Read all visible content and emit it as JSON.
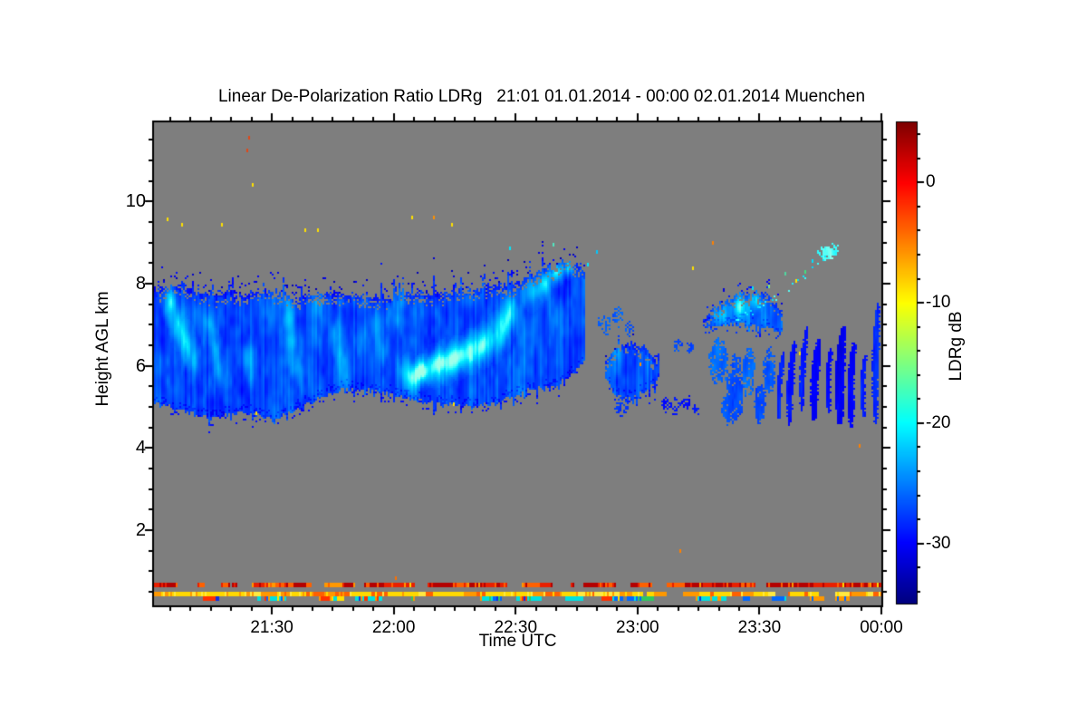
{
  "chart_data": {
    "type": "heatmap",
    "title": "Linear De-Polarization Ratio LDRg   21:01 01.01.2014 - 00:00 02.01.2014 Muenchen",
    "xlabel": "Time UTC",
    "ylabel": "Height AGL km",
    "no_signal_color": "#7e7e7e",
    "axis_color": "#000000",
    "grid": false,
    "x_axis": {
      "start": "21:01",
      "end": "00:00",
      "duration_min": 179,
      "major_ticks": [
        {
          "t": 29,
          "label": "21:30"
        },
        {
          "t": 59,
          "label": "22:00"
        },
        {
          "t": 89,
          "label": "22:30"
        },
        {
          "t": 119,
          "label": "23:00"
        },
        {
          "t": 149,
          "label": "23:30"
        },
        {
          "t": 179,
          "label": "00:00"
        }
      ],
      "minor_step_min": 5
    },
    "y_axis": {
      "range_km": [
        0.17,
        11.93
      ],
      "major_ticks": [
        {
          "km": 10,
          "label": "10"
        },
        {
          "km": 8,
          "label": "8"
        },
        {
          "km": 6,
          "label": "6"
        },
        {
          "km": 4,
          "label": "4"
        },
        {
          "km": 2,
          "label": "2"
        }
      ],
      "minor_step_km": 0.5
    },
    "colorbar": {
      "label": "LDRg dB",
      "colormap": "jet",
      "range_db": [
        -35,
        5
      ],
      "major_ticks": [
        {
          "db": 0,
          "label": "0"
        },
        {
          "db": -10,
          "label": "-10"
        },
        {
          "db": -20,
          "label": "-20"
        },
        {
          "db": -30,
          "label": "-30"
        }
      ],
      "minor_step_db": 2
    },
    "regions": [
      {
        "id": "main-cloud",
        "kind": "band",
        "t0": 0,
        "t1": 106,
        "base_db": -27,
        "fuzz_km": 0.5,
        "spike_km": 0.4,
        "top": [
          [
            0,
            7.85
          ],
          [
            6,
            8.0
          ],
          [
            12,
            7.8
          ],
          [
            20,
            7.75
          ],
          [
            28,
            7.85
          ],
          [
            36,
            7.7
          ],
          [
            44,
            7.8
          ],
          [
            52,
            7.7
          ],
          [
            60,
            7.75
          ],
          [
            68,
            7.8
          ],
          [
            76,
            7.85
          ],
          [
            84,
            7.95
          ],
          [
            90,
            8.05
          ],
          [
            96,
            8.35
          ],
          [
            101,
            8.55
          ],
          [
            104,
            8.5
          ],
          [
            106,
            8.2
          ]
        ],
        "bottom": [
          [
            0,
            5.15
          ],
          [
            6,
            4.95
          ],
          [
            14,
            4.75
          ],
          [
            22,
            4.9
          ],
          [
            30,
            4.7
          ],
          [
            38,
            5.1
          ],
          [
            46,
            5.45
          ],
          [
            54,
            5.4
          ],
          [
            62,
            5.25
          ],
          [
            70,
            5.1
          ],
          [
            78,
            5.0
          ],
          [
            86,
            5.2
          ],
          [
            93,
            5.45
          ],
          [
            99,
            5.55
          ],
          [
            103,
            5.85
          ],
          [
            106,
            6.15
          ]
        ],
        "blobs": [
          [
            4,
            7.5,
            1.6,
            0.4,
            -21.5
          ],
          [
            6,
            7.0,
            1.6,
            0.45,
            -20.5
          ],
          [
            8,
            6.5,
            1.6,
            0.45,
            -21
          ],
          [
            10,
            6.1,
            1.5,
            0.4,
            -22
          ],
          [
            14,
            7.0,
            1.4,
            0.35,
            -22.5
          ],
          [
            15,
            6.4,
            1.4,
            0.35,
            -22.5
          ],
          [
            16,
            5.9,
            1.3,
            0.3,
            -23
          ],
          [
            23,
            6.2,
            1.6,
            0.4,
            -23.5
          ],
          [
            24,
            5.7,
            1.4,
            0.35,
            -24
          ],
          [
            33,
            7.2,
            1.5,
            0.4,
            -23
          ],
          [
            34,
            6.6,
            1.5,
            0.4,
            -23
          ],
          [
            35,
            6.0,
            1.4,
            0.35,
            -23.5
          ],
          [
            40,
            7.4,
            2.0,
            0.5,
            -24.5
          ],
          [
            45,
            6.8,
            1.8,
            0.4,
            -23.5
          ],
          [
            46,
            6.2,
            1.6,
            0.4,
            -23.5
          ],
          [
            47,
            5.7,
            1.5,
            0.35,
            -24
          ],
          [
            55,
            7.0,
            1.6,
            0.45,
            -23
          ],
          [
            56,
            6.4,
            1.5,
            0.4,
            -23.5
          ],
          [
            60,
            7.3,
            2.0,
            0.5,
            -24.5
          ],
          [
            63,
            5.75,
            2.5,
            0.4,
            -20
          ],
          [
            66,
            5.85,
            1.8,
            0.32,
            -18.8
          ],
          [
            69,
            6.0,
            2.2,
            0.38,
            -19.2
          ],
          [
            72,
            6.1,
            2.4,
            0.4,
            -19
          ],
          [
            75,
            6.2,
            2.2,
            0.38,
            -19.5
          ],
          [
            78,
            6.35,
            2.2,
            0.4,
            -19.2
          ],
          [
            81,
            6.5,
            2.0,
            0.4,
            -20
          ],
          [
            84,
            6.7,
            1.8,
            0.45,
            -21
          ],
          [
            86,
            7.0,
            1.8,
            0.5,
            -21.5
          ],
          [
            88,
            7.3,
            1.6,
            0.45,
            -21.5
          ],
          [
            93,
            7.8,
            1.8,
            0.35,
            -21.5
          ],
          [
            96,
            8.0,
            1.6,
            0.3,
            -20.5
          ],
          [
            99,
            8.3,
            1.6,
            0.28,
            -19.8
          ],
          [
            102,
            8.45,
            1.4,
            0.25,
            -19.5
          ]
        ]
      },
      {
        "id": "detached-patch",
        "kind": "band",
        "t0": 111,
        "t1": 124.5,
        "base_db": -26.5,
        "fuzz_km": 0.3,
        "spike_km": 0.25,
        "top": [
          [
            111,
            6.1
          ],
          [
            114,
            6.5
          ],
          [
            118,
            6.55
          ],
          [
            121,
            6.4
          ],
          [
            124.5,
            6.1
          ]
        ],
        "bottom": [
          [
            111,
            5.8
          ],
          [
            113,
            5.35
          ],
          [
            117,
            5.2
          ],
          [
            121,
            5.4
          ],
          [
            124.5,
            5.75
          ]
        ],
        "blobs": [
          [
            114,
            6.35,
            1.5,
            0.2,
            -23.5
          ]
        ]
      },
      {
        "id": "right-band",
        "kind": "band",
        "t0": 135,
        "t1": 154.5,
        "base_db": -25.5,
        "fuzz_km": 0.35,
        "spike_km": 0.25,
        "top": [
          [
            135,
            7.15
          ],
          [
            139,
            7.5
          ],
          [
            144,
            7.75
          ],
          [
            149,
            7.8
          ],
          [
            152,
            7.65
          ],
          [
            154.5,
            7.4
          ]
        ],
        "bottom": [
          [
            135,
            6.9
          ],
          [
            139,
            7.0
          ],
          [
            144,
            7.05
          ],
          [
            149,
            7.0
          ],
          [
            152,
            6.9
          ],
          [
            154.5,
            6.8
          ]
        ],
        "blobs": [
          [
            144,
            7.45,
            2.2,
            0.28,
            -20.5
          ],
          [
            148,
            7.6,
            1.8,
            0.25,
            -21
          ],
          [
            140,
            7.2,
            1.6,
            0.25,
            -22
          ]
        ]
      },
      {
        "id": "patch-over-detached",
        "kind": "blobs",
        "sparse": 0.5,
        "items": [
          [
            111,
            7.0,
            1.5,
            0.3,
            -26
          ],
          [
            114,
            7.2,
            1.2,
            0.25,
            -26.5
          ],
          [
            117,
            6.9,
            1.0,
            0.2,
            -27
          ],
          [
            115,
            5.0,
            2.0,
            0.25,
            -28
          ]
        ]
      },
      {
        "id": "left-bits",
        "kind": "blobs",
        "sparse": 0.55,
        "items": [
          [
            126,
            5.05,
            1.2,
            0.2,
            -29
          ],
          [
            128.5,
            5.0,
            1.5,
            0.22,
            -29
          ],
          [
            131,
            5.1,
            1.3,
            0.2,
            -29.5
          ],
          [
            133.5,
            4.95,
            1.0,
            0.18,
            -29
          ],
          [
            129,
            6.5,
            1.2,
            0.18,
            -27
          ],
          [
            132,
            6.45,
            1.0,
            0.15,
            -27.5
          ]
        ]
      },
      {
        "id": "lower-blobs",
        "kind": "blobs",
        "sparse": 0.9,
        "items": [
          [
            139,
            6.1,
            2.5,
            0.55,
            -26
          ],
          [
            143,
            5.4,
            2.2,
            0.8,
            -27
          ],
          [
            146.5,
            5.9,
            1.8,
            0.55,
            -26
          ],
          [
            149,
            5.1,
            1.5,
            0.5,
            -27.5
          ],
          [
            151.5,
            5.9,
            1.5,
            0.6,
            -26.5
          ],
          [
            141,
            4.95,
            1.2,
            0.35,
            -27
          ]
        ]
      },
      {
        "id": "fall-streaks",
        "kind": "streaks",
        "items": [
          [
            154.8,
            6.35,
            153.8,
            4.75,
            1.2,
            -28.5
          ],
          [
            157.6,
            6.6,
            156.4,
            4.55,
            1.5,
            -29.5
          ],
          [
            160.6,
            6.95,
            159.4,
            4.9,
            1.3,
            -29
          ],
          [
            163.6,
            6.65,
            162.4,
            4.7,
            1.8,
            -30
          ],
          [
            166.6,
            6.45,
            166.0,
            4.85,
            1.2,
            -29.5
          ],
          [
            169.6,
            6.95,
            168.8,
            4.6,
            2.2,
            -30.5
          ],
          [
            172.2,
            6.55,
            171.5,
            4.5,
            1.6,
            -30
          ],
          [
            175.0,
            6.25,
            174.5,
            4.8,
            1.2,
            -29
          ],
          [
            178.2,
            7.55,
            177.6,
            4.6,
            1.5,
            -28.5
          ]
        ]
      },
      {
        "id": "rising-streak",
        "kind": "path",
        "v": -20.5,
        "gap": 0.45,
        "width_km": 0.14,
        "pts": [
          [
            143,
            7.15
          ],
          [
            150,
            7.5
          ],
          [
            156,
            7.9
          ],
          [
            160,
            8.2
          ],
          [
            163,
            8.5
          ],
          [
            166,
            8.8
          ]
        ]
      },
      {
        "id": "streak-top-cluster",
        "kind": "blobs",
        "sparse": 0.85,
        "items": [
          [
            165.5,
            8.75,
            2.0,
            0.2,
            -19.5
          ],
          [
            167.5,
            8.85,
            1.2,
            0.15,
            -20
          ]
        ]
      }
    ],
    "surface_stripes": [
      {
        "id": "stripe-upper",
        "h_km": [
          0.61,
          0.72
        ],
        "coverage": 0.72,
        "palette": [
          "#b40000",
          "#e82000",
          "#ff6000",
          "#ff9800",
          "#ffd800"
        ],
        "weights": [
          0.25,
          0.35,
          0.25,
          0.1,
          0.05
        ]
      },
      {
        "id": "stripe-middle",
        "h_km": [
          0.4,
          0.51
        ],
        "coverage": 0.93,
        "palette": [
          "#ffd800",
          "#ffe840",
          "#ff9800",
          "#ff6000"
        ],
        "weights": [
          0.45,
          0.2,
          0.25,
          0.1
        ]
      },
      {
        "id": "stripe-lower",
        "h_km": [
          0.28,
          0.38
        ],
        "coverage": 0.42,
        "palette": [
          "#00e0e0",
          "#0068ff",
          "#ff3000",
          "#ff9800",
          "#ffe000",
          "#30c860",
          "#1030e0"
        ],
        "weights": [
          0.22,
          0.18,
          0.15,
          0.15,
          0.12,
          0.1,
          0.08
        ]
      }
    ],
    "specks": [
      [
        23,
        11.6,
        "#e04818"
      ],
      [
        22.7,
        11.3,
        "#e04818"
      ],
      [
        23.9,
        10.45,
        "#ffe000"
      ],
      [
        2.9,
        9.6,
        "#ffe000"
      ],
      [
        6.7,
        9.5,
        "#ffe000"
      ],
      [
        16.3,
        9.5,
        "#ffe000"
      ],
      [
        37.2,
        9.35,
        "#ffe000"
      ],
      [
        40.1,
        9.35,
        "#ffe000"
      ],
      [
        63.1,
        9.65,
        "#ffe000"
      ],
      [
        68.7,
        9.65,
        "#ff9000"
      ],
      [
        73.1,
        9.5,
        "#ffe000"
      ],
      [
        87.6,
        8.9,
        "#00e8ff"
      ],
      [
        98.1,
        9.0,
        "#50e8c0"
      ],
      [
        106.5,
        8.5,
        "#00e8ff"
      ],
      [
        108.8,
        8.8,
        "#00c8ff"
      ],
      [
        137.1,
        9.05,
        "#ff8000"
      ],
      [
        132.6,
        8.4,
        "#ffe000"
      ],
      [
        147,
        7.95,
        "#00e0ff"
      ],
      [
        151,
        8.0,
        "#80e880"
      ],
      [
        155,
        8.3,
        "#50d8a0"
      ],
      [
        158,
        8.1,
        "#ffe000"
      ],
      [
        160,
        8.35,
        "#40e080"
      ],
      [
        162,
        8.6,
        "#00e0ff"
      ],
      [
        158.9,
        6.35,
        "#ffe000"
      ],
      [
        119.3,
        6.1,
        "#ff9000"
      ],
      [
        25,
        4.9,
        "#ffe000"
      ],
      [
        73.6,
        5.1,
        "#ffe000"
      ],
      [
        59.1,
        0.88,
        "#ff7000"
      ],
      [
        129.3,
        1.55,
        "#ff8000"
      ],
      [
        173.4,
        4.1,
        "#ff8000"
      ]
    ]
  }
}
